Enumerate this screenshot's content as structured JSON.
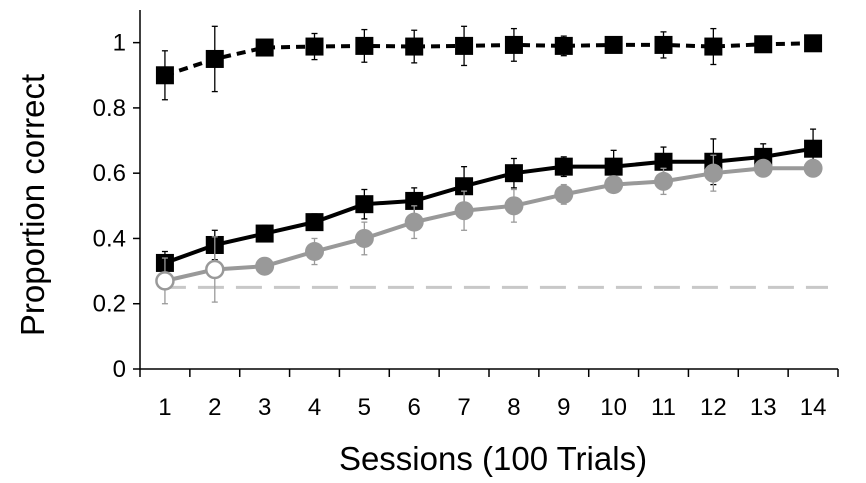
{
  "chart_data": {
    "type": "line",
    "xlabel": "Sessions (100 Trials)",
    "ylabel": "Proportion correct",
    "x": [
      1,
      2,
      3,
      4,
      5,
      6,
      7,
      8,
      9,
      10,
      11,
      12,
      13,
      14
    ],
    "xlim": [
      0.5,
      14.5
    ],
    "ylim": [
      0,
      1.1
    ],
    "yticks": [
      0,
      0.2,
      0.4,
      0.6,
      0.8,
      1
    ],
    "ytick_labels": [
      "0",
      "0.2",
      "0.4",
      "0.6",
      "0.8",
      "1"
    ],
    "xtick_labels": [
      "1",
      "2",
      "3",
      "4",
      "5",
      "6",
      "7",
      "8",
      "9",
      "10",
      "11",
      "12",
      "13",
      "14"
    ],
    "chance_level": 0.25,
    "grid": false,
    "legend": "none",
    "series": [
      {
        "style": "dashed-black-square",
        "color": "#000000",
        "values": [
          0.9,
          0.95,
          0.985,
          0.988,
          0.99,
          0.988,
          0.99,
          0.993,
          0.99,
          0.993,
          0.993,
          0.988,
          0.995,
          0.998
        ],
        "errors": [
          0.075,
          0.1,
          0.02,
          0.04,
          0.05,
          0.05,
          0.06,
          0.05,
          0.03,
          0.02,
          0.04,
          0.055,
          0.01,
          0.01
        ]
      },
      {
        "style": "solid-black-square",
        "color": "#000000",
        "values": [
          0.325,
          0.38,
          0.415,
          0.45,
          0.505,
          0.515,
          0.56,
          0.6,
          0.62,
          0.62,
          0.635,
          0.635,
          0.65,
          0.675
        ],
        "errors": [
          0.035,
          0.045,
          0.025,
          0.025,
          0.045,
          0.04,
          0.06,
          0.045,
          0.03,
          0.05,
          0.045,
          0.07,
          0.04,
          0.06
        ]
      },
      {
        "style": "solid-gray-circle",
        "color": "#999999",
        "values": [
          0.27,
          0.305,
          0.315,
          0.36,
          0.4,
          0.45,
          0.485,
          0.5,
          0.535,
          0.565,
          0.575,
          0.6,
          0.615,
          0.615
        ],
        "errors": [
          0.07,
          0.1,
          0.02,
          0.04,
          0.05,
          0.05,
          0.06,
          0.05,
          0.03,
          0.02,
          0.04,
          0.055,
          0.02,
          0.02
        ]
      }
    ]
  }
}
